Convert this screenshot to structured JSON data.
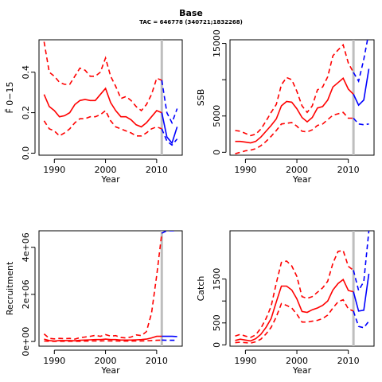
{
  "figure": {
    "title": "Base",
    "subtitle": "TAC = 646778 (340721;1832268)"
  },
  "colors": {
    "historic": "#ff0000",
    "projection": "#0000ff",
    "divider": "#bebebe",
    "axis": "#000000"
  },
  "chart_data": [
    {
      "type": "line",
      "panel": "fbar",
      "xlabel": "Year",
      "ylabel": "F̄ 0−15",
      "xlim": [
        1987,
        2015
      ],
      "ylim": [
        -0.01,
        0.56
      ],
      "xticks": [
        1990,
        2000,
        2010
      ],
      "yticks": [
        0,
        0.2,
        0.4
      ],
      "yticklabels": [
        "0.0",
        "0.2",
        "0.4"
      ],
      "vline": 2011,
      "series": [
        {
          "style": "hist-median",
          "x": [
            1988,
            1989,
            1990,
            1991,
            1992,
            1993,
            1994,
            1995,
            1996,
            1997,
            1998,
            1999,
            2000,
            2001,
            2002,
            2003,
            2004,
            2005,
            2006,
            2007,
            2008,
            2009,
            2010,
            2011
          ],
          "y": [
            0.29,
            0.23,
            0.21,
            0.18,
            0.185,
            0.2,
            0.24,
            0.26,
            0.265,
            0.26,
            0.26,
            0.29,
            0.32,
            0.25,
            0.21,
            0.18,
            0.18,
            0.165,
            0.14,
            0.13,
            0.15,
            0.18,
            0.21,
            0.2
          ]
        },
        {
          "style": "hist-upper",
          "x": [
            1988,
            1989,
            1990,
            1991,
            1992,
            1993,
            1994,
            1995,
            1996,
            1997,
            1998,
            1999,
            2000,
            2001,
            2002,
            2003,
            2004,
            2005,
            2006,
            2007,
            2008,
            2009,
            2010,
            2011
          ],
          "y": [
            0.55,
            0.4,
            0.38,
            0.35,
            0.34,
            0.34,
            0.38,
            0.42,
            0.41,
            0.38,
            0.38,
            0.4,
            0.47,
            0.38,
            0.33,
            0.27,
            0.28,
            0.26,
            0.23,
            0.21,
            0.24,
            0.29,
            0.37,
            0.36
          ]
        },
        {
          "style": "hist-lower",
          "x": [
            1988,
            1989,
            1990,
            1991,
            1992,
            1993,
            1994,
            1995,
            1996,
            1997,
            1998,
            1999,
            2000,
            2001,
            2002,
            2003,
            2004,
            2005,
            2006,
            2007,
            2008,
            2009,
            2010,
            2011
          ],
          "y": [
            0.16,
            0.12,
            0.11,
            0.085,
            0.1,
            0.12,
            0.15,
            0.17,
            0.17,
            0.18,
            0.18,
            0.19,
            0.21,
            0.16,
            0.13,
            0.12,
            0.11,
            0.1,
            0.085,
            0.085,
            0.1,
            0.12,
            0.13,
            0.12
          ]
        },
        {
          "style": "proj-median",
          "x": [
            2011,
            2012,
            2013,
            2014
          ],
          "y": [
            0.2,
            0.08,
            0.05,
            0.13
          ]
        },
        {
          "style": "proj-upper",
          "x": [
            2011,
            2012,
            2013,
            2014
          ],
          "y": [
            0.36,
            0.2,
            0.15,
            0.22
          ]
        },
        {
          "style": "proj-lower",
          "x": [
            2011,
            2012,
            2013,
            2014
          ],
          "y": [
            0.12,
            0.06,
            0.04,
            0.07
          ]
        }
      ]
    },
    {
      "type": "line",
      "panel": "ssb",
      "xlabel": "Year",
      "ylabel": "SSB",
      "xlim": [
        1987,
        2015
      ],
      "ylim": [
        -400,
        15500
      ],
      "xticks": [
        1990,
        2000,
        2010
      ],
      "yticks": [
        0,
        5000,
        10000,
        15000
      ],
      "yticklabels": [
        "0",
        "5000",
        "",
        "15000"
      ],
      "vline": 2011,
      "series": [
        {
          "style": "hist-median",
          "x": [
            1988,
            1989,
            1990,
            1991,
            1992,
            1993,
            1994,
            1995,
            1996,
            1997,
            1998,
            1999,
            2000,
            2001,
            2002,
            2003,
            2004,
            2005,
            2006,
            2007,
            2008,
            2009,
            2010,
            2011
          ],
          "y": [
            1500,
            1500,
            1400,
            1300,
            1500,
            2100,
            2900,
            3700,
            4600,
            6400,
            7000,
            6900,
            6000,
            4800,
            4200,
            4800,
            6100,
            6300,
            7200,
            9000,
            9600,
            10200,
            8700,
            8000
          ]
        },
        {
          "style": "hist-upper",
          "x": [
            1988,
            1989,
            1990,
            1991,
            1992,
            1993,
            1994,
            1995,
            1996,
            1997,
            1998,
            1999,
            2000,
            2001,
            2002,
            2003,
            2004,
            2005,
            2006,
            2007,
            2008,
            2009,
            2010,
            2011
          ],
          "y": [
            3000,
            2900,
            2600,
            2300,
            2500,
            3200,
            4300,
            5500,
            6600,
            9300,
            10300,
            10000,
            8400,
            6400,
            5500,
            6400,
            8600,
            9000,
            10400,
            13300,
            14100,
            14800,
            12300,
            11000
          ]
        },
        {
          "style": "hist-lower",
          "x": [
            1988,
            1989,
            1990,
            1991,
            1992,
            1993,
            1994,
            1995,
            1996,
            1997,
            1998,
            1999,
            2000,
            2001,
            2002,
            2003,
            2004,
            2005,
            2006,
            2007,
            2008,
            2009,
            2010,
            2011
          ],
          "y": [
            -200,
            0,
            200,
            300,
            500,
            900,
            1500,
            2200,
            3000,
            3900,
            4000,
            4100,
            3600,
            2900,
            2800,
            3100,
            3700,
            3900,
            4500,
            5100,
            5300,
            5500,
            4700,
            4700
          ]
        },
        {
          "style": "proj-median",
          "x": [
            2011,
            2012,
            2013,
            2014
          ],
          "y": [
            8000,
            6500,
            7200,
            11500
          ]
        },
        {
          "style": "proj-upper",
          "x": [
            2011,
            2012,
            2013,
            2014
          ],
          "y": [
            11000,
            9800,
            12800,
            16500
          ]
        },
        {
          "style": "proj-lower",
          "x": [
            2011,
            2012,
            2013,
            2014
          ],
          "y": [
            4700,
            3900,
            3800,
            3900
          ]
        }
      ]
    },
    {
      "type": "line",
      "panel": "recruitment",
      "xlabel": "Year",
      "ylabel": "Recruitment",
      "xlim": [
        1987,
        2015
      ],
      "ylim": [
        -200000,
        4700000
      ],
      "xticks": [
        1990,
        2000,
        2010
      ],
      "yticks": [
        0,
        2000000,
        4000000
      ],
      "yticklabels": [
        "0e+00",
        "2e+06",
        "4e+06"
      ],
      "vline": 2011,
      "series": [
        {
          "style": "hist-median",
          "x": [
            1988,
            1989,
            1990,
            1991,
            1992,
            1993,
            1994,
            1995,
            1996,
            1997,
            1998,
            1999,
            2000,
            2001,
            2002,
            2003,
            2004,
            2005,
            2006,
            2007,
            2008,
            2009,
            2010,
            2011
          ],
          "y": [
            100000,
            40000,
            20000,
            40000,
            40000,
            40000,
            30000,
            50000,
            60000,
            70000,
            80000,
            80000,
            100000,
            80000,
            80000,
            60000,
            60000,
            60000,
            70000,
            80000,
            100000,
            150000,
            220000,
            220000
          ]
        },
        {
          "style": "hist-upper",
          "x": [
            1988,
            1989,
            1990,
            1991,
            1992,
            1993,
            1994,
            1995,
            1996,
            1997,
            1998,
            1999,
            2000,
            2001,
            2002,
            2003,
            2004,
            2005,
            2006,
            2007,
            2008,
            2009,
            2010,
            2011
          ],
          "y": [
            320000,
            130000,
            110000,
            130000,
            120000,
            130000,
            100000,
            160000,
            190000,
            220000,
            260000,
            220000,
            290000,
            230000,
            250000,
            170000,
            150000,
            190000,
            280000,
            250000,
            420000,
            1200000,
            2800000,
            4600000
          ]
        },
        {
          "style": "hist-lower",
          "x": [
            1988,
            1989,
            1990,
            1991,
            1992,
            1993,
            1994,
            1995,
            1996,
            1997,
            1998,
            1999,
            2000,
            2001,
            2002,
            2003,
            2004,
            2005,
            2006,
            2007,
            2008,
            2009,
            2010,
            2011
          ],
          "y": [
            20000,
            10000,
            5000,
            10000,
            10000,
            10000,
            5000,
            10000,
            15000,
            20000,
            20000,
            20000,
            30000,
            20000,
            20000,
            15000,
            15000,
            15000,
            20000,
            20000,
            30000,
            40000,
            50000,
            60000
          ]
        },
        {
          "style": "proj-median",
          "x": [
            2011,
            2012,
            2013,
            2014
          ],
          "y": [
            220000,
            220000,
            220000,
            210000
          ]
        },
        {
          "style": "proj-upper",
          "x": [
            2011,
            2012,
            2013,
            2014
          ],
          "y": [
            4600000,
            4700000,
            4700000,
            4700000
          ]
        },
        {
          "style": "proj-lower",
          "x": [
            2011,
            2012,
            2013,
            2014
          ],
          "y": [
            60000,
            50000,
            50000,
            50000
          ]
        }
      ]
    },
    {
      "type": "line",
      "panel": "catch",
      "xlabel": "Year",
      "ylabel": "Catch",
      "xlim": [
        1987,
        2015
      ],
      "ylim": [
        -30,
        2600
      ],
      "xticks": [
        1990,
        2000,
        2010
      ],
      "yticks": [
        0,
        500,
        1000,
        1500
      ],
      "yticklabels": [
        "0",
        "500",
        "",
        "1500"
      ],
      "vline": 2011,
      "series": [
        {
          "style": "hist-median",
          "x": [
            1988,
            1989,
            1990,
            1991,
            1992,
            1993,
            1994,
            1995,
            1996,
            1997,
            1998,
            1999,
            2000,
            2001,
            2002,
            2003,
            2004,
            2005,
            2006,
            2007,
            2008,
            2009,
            2010,
            2011
          ],
          "y": [
            100,
            130,
            110,
            90,
            140,
            240,
            400,
            600,
            980,
            1340,
            1340,
            1250,
            1050,
            760,
            740,
            800,
            840,
            900,
            1000,
            1250,
            1400,
            1490,
            1240,
            1210
          ]
        },
        {
          "style": "hist-upper",
          "x": [
            1988,
            1989,
            1990,
            1991,
            1992,
            1993,
            1994,
            1995,
            1996,
            1997,
            1998,
            1999,
            2000,
            2001,
            2002,
            2003,
            2004,
            2005,
            2006,
            2007,
            2008,
            2009,
            2010,
            2011
          ],
          "y": [
            200,
            240,
            200,
            170,
            230,
            380,
            600,
            880,
            1410,
            1880,
            1910,
            1800,
            1560,
            1100,
            1060,
            1100,
            1200,
            1300,
            1450,
            1860,
            2130,
            2150,
            1790,
            1700
          ]
        },
        {
          "style": "hist-lower",
          "x": [
            1988,
            1989,
            1990,
            1991,
            1992,
            1993,
            1994,
            1995,
            1996,
            1997,
            1998,
            1999,
            2000,
            2001,
            2002,
            2003,
            2004,
            2005,
            2006,
            2007,
            2008,
            2009,
            2010,
            2011
          ],
          "y": [
            50,
            60,
            50,
            40,
            70,
            130,
            250,
            400,
            640,
            940,
            900,
            840,
            700,
            520,
            520,
            540,
            560,
            600,
            680,
            840,
            980,
            1030,
            820,
            770
          ]
        },
        {
          "style": "proj-median",
          "x": [
            2011,
            2012,
            2013,
            2014
          ],
          "y": [
            1210,
            770,
            790,
            1620
          ]
        },
        {
          "style": "proj-upper",
          "x": [
            2011,
            2012,
            2013,
            2014
          ],
          "y": [
            1700,
            1240,
            1440,
            2600
          ]
        },
        {
          "style": "proj-lower",
          "x": [
            2011,
            2012,
            2013,
            2014
          ],
          "y": [
            770,
            420,
            390,
            540
          ]
        }
      ]
    }
  ]
}
